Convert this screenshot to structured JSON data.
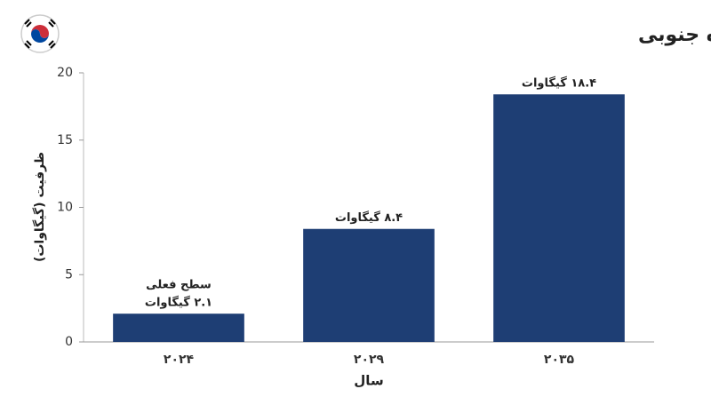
{
  "chart_data": {
    "type": "bar",
    "title": "رشد پیش‌بینی‌شده ظرفیت برق مراکز داده هوش مصنوعی کره جنوبی",
    "y_label": "ظرفیت (گیگاوات)",
    "x_label": "سال",
    "categories": [
      "۲۰۲۴",
      "۲۰۲۹",
      "۲۰۳۵"
    ],
    "values": [
      2.1,
      8.4,
      18.4
    ],
    "value_labels": [
      "۲.۱ گیگاوات",
      "۸.۴ گیگاوات",
      "۱۸.۴ گیگاوات"
    ],
    "annotation": "سطح فعلی",
    "color": "#1e3e74",
    "ylim": [
      0,
      20
    ],
    "yticks": [
      0,
      5,
      10,
      15,
      20
    ],
    "grid": false
  }
}
